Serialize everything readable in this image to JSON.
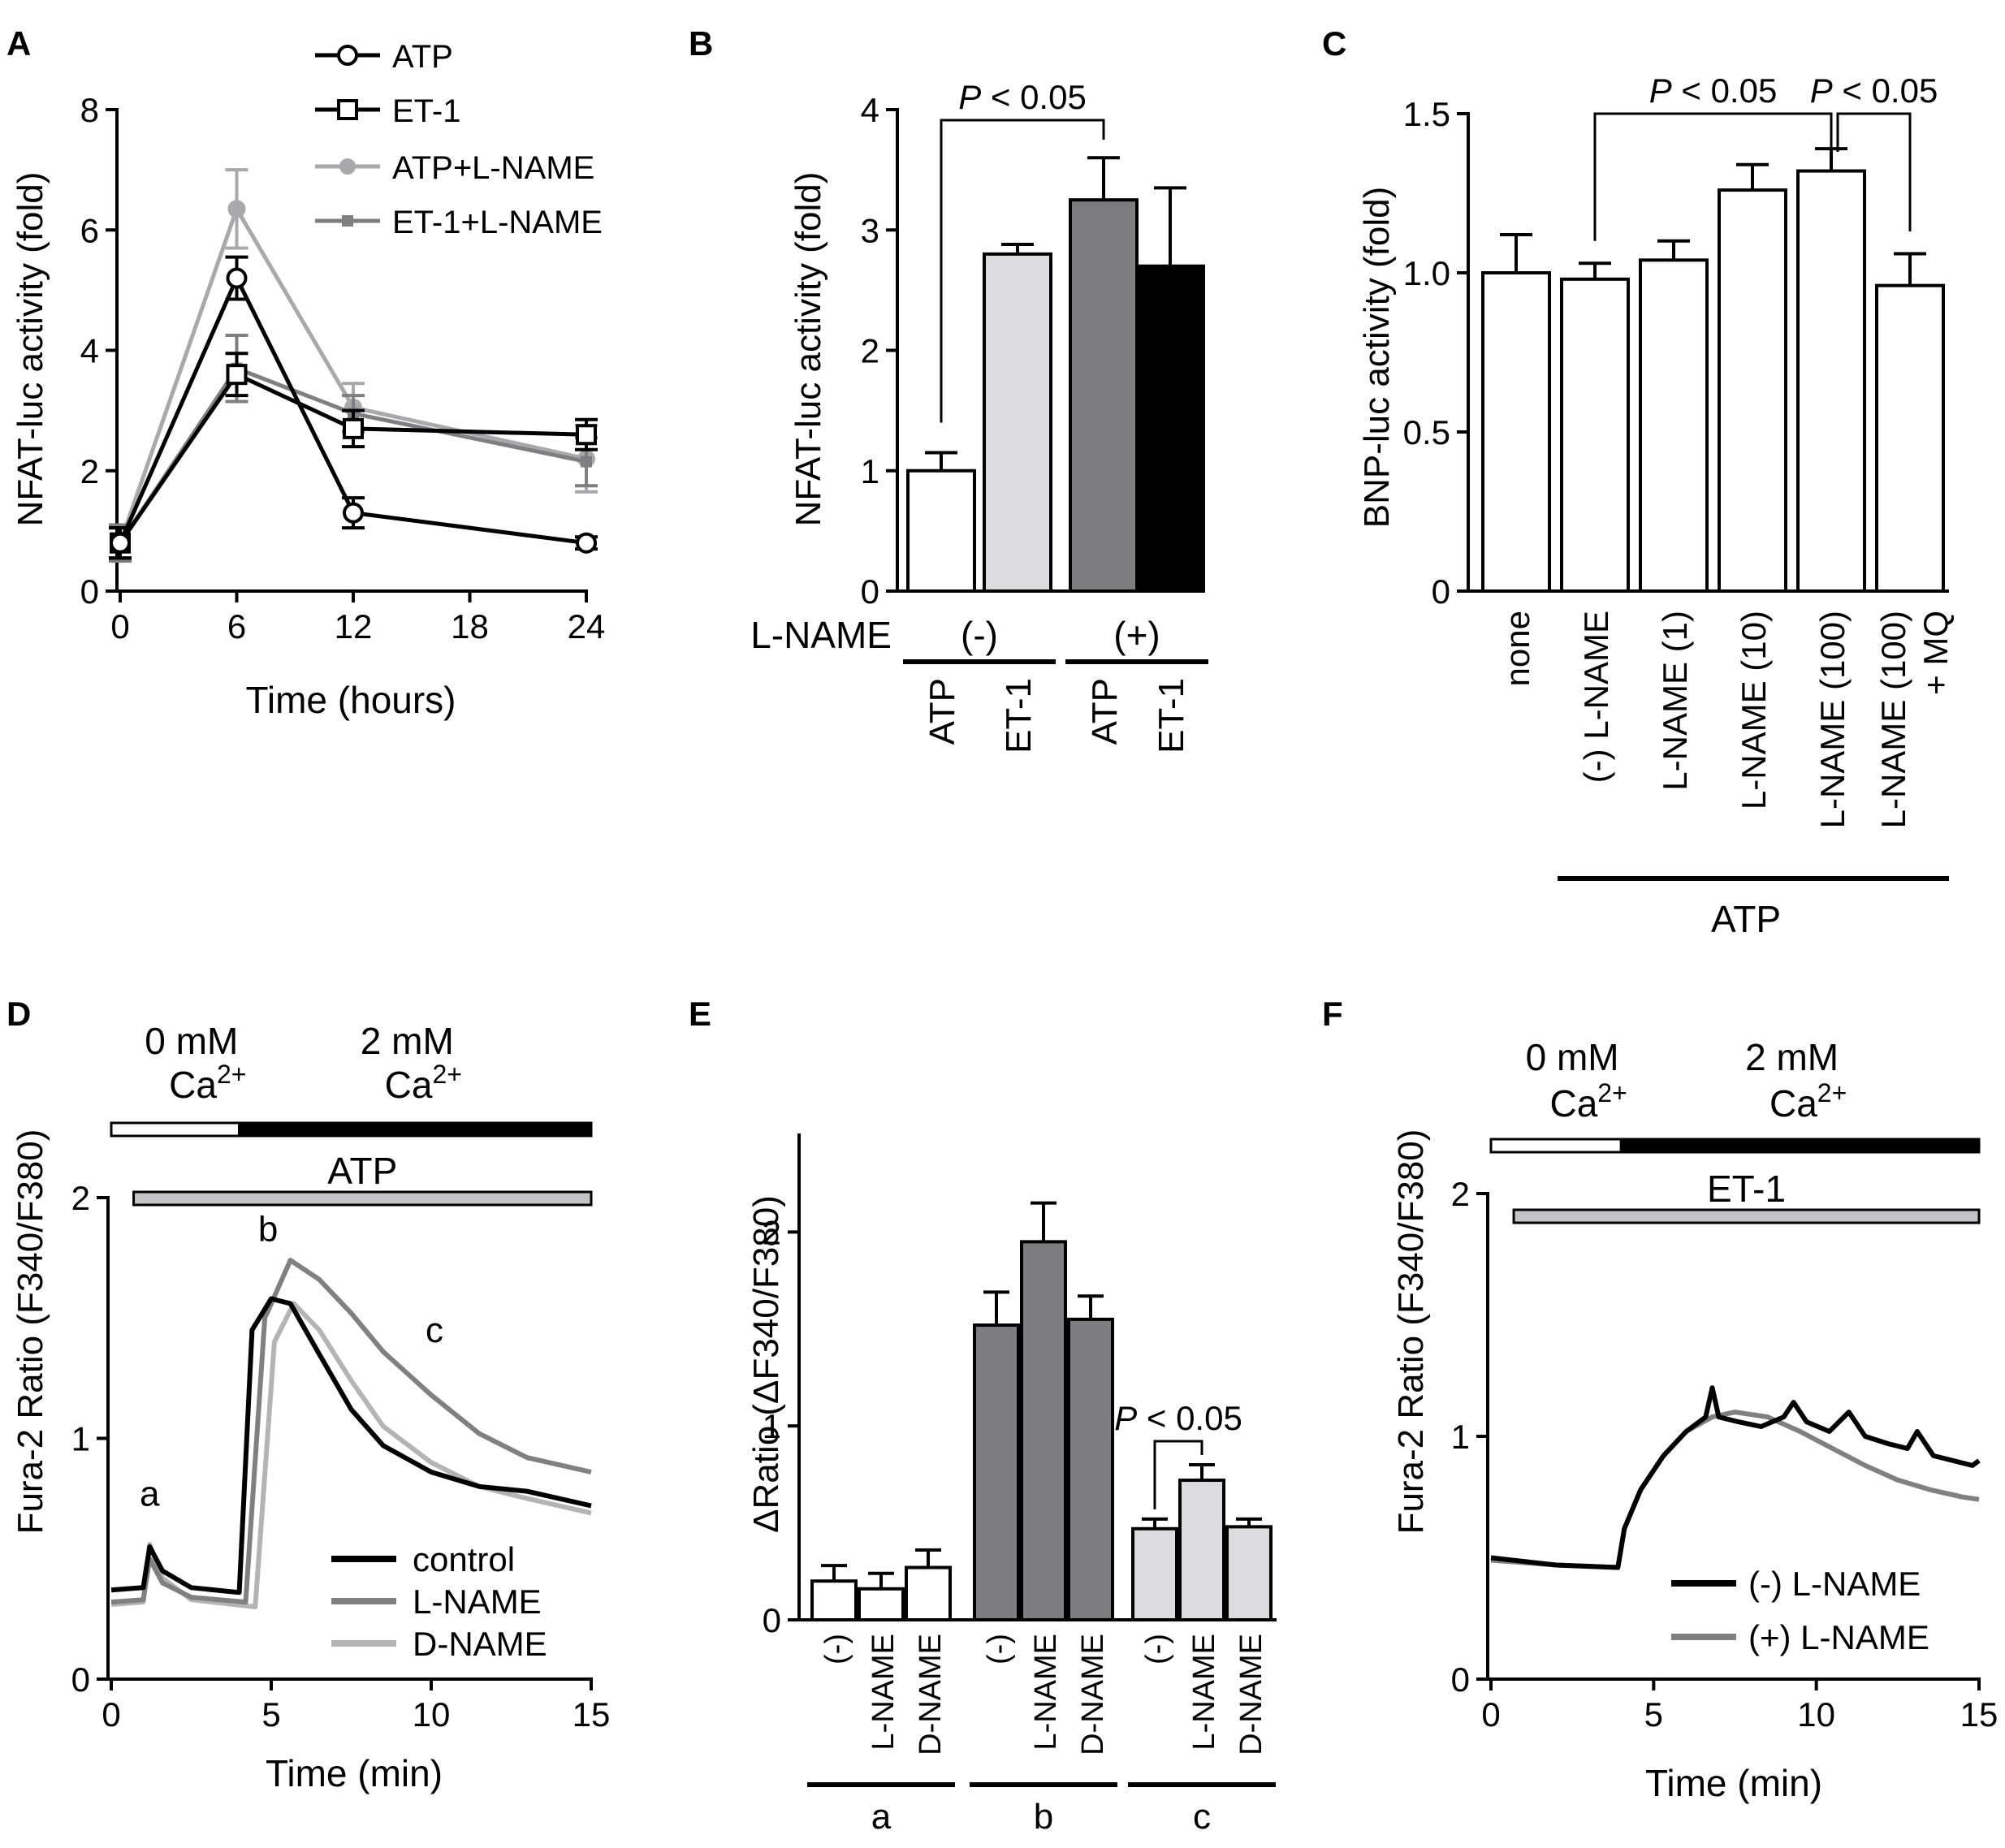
{
  "figure": {
    "colors": {
      "black": "#000000",
      "white": "#ffffff",
      "light_gray": "#c4c4c6",
      "mid_gray": "#8c8c8e",
      "dark_gray": "#6a6a6c",
      "bar_light": "#dcdcde",
      "bar_dark": "#7d7d80",
      "trace_gray": "#808080",
      "trace_light": "#b4b4b6"
    }
  },
  "chart_data": [
    {
      "panel": "A",
      "type": "line",
      "xlabel": "Time (hours)",
      "ylabel": "NFAT-luc activity (fold)",
      "xlim": [
        0,
        24
      ],
      "ylim": [
        0,
        8
      ],
      "xticks": [
        0,
        6,
        12,
        18,
        24
      ],
      "yticks": [
        0,
        2,
        4,
        6,
        8
      ],
      "legend_position": "top-right",
      "series": [
        {
          "name": "ATP",
          "marker": "circle",
          "color": "#000000",
          "x": [
            0,
            6,
            12,
            24
          ],
          "y": [
            0.8,
            5.2,
            1.3,
            0.8
          ],
          "err": [
            0.25,
            0.35,
            0.25,
            0.1
          ]
        },
        {
          "name": "ET-1",
          "marker": "square",
          "color": "#000000",
          "x": [
            0,
            6,
            12,
            24
          ],
          "y": [
            0.8,
            3.6,
            2.7,
            2.6
          ],
          "err": [
            0.25,
            0.35,
            0.3,
            0.25
          ]
        },
        {
          "name": "ATP+L-NAME",
          "marker": "dot",
          "color": "#a9a9ab",
          "x": [
            0,
            6,
            12,
            24
          ],
          "y": [
            0.8,
            6.35,
            3.05,
            2.2
          ],
          "err": [
            0.3,
            0.65,
            0.4,
            0.55
          ]
        },
        {
          "name": "ET-1+L-NAME",
          "marker": "smallsquare",
          "color": "#7f7f82",
          "x": [
            0,
            6,
            12,
            24
          ],
          "y": [
            0.8,
            3.7,
            2.95,
            2.15
          ],
          "err": [
            0.3,
            0.55,
            0.3,
            0.4
          ]
        }
      ]
    },
    {
      "panel": "B",
      "type": "bar",
      "ylabel": "NFAT-luc activity (fold)",
      "ylim": [
        0,
        4
      ],
      "yticks": [
        0,
        1,
        2,
        3,
        4
      ],
      "categories": [
        "ATP",
        "ET-1",
        "ATP",
        "ET-1"
      ],
      "values": [
        1.0,
        2.8,
        3.25,
        2.7
      ],
      "errors": [
        0.15,
        0.08,
        0.35,
        0.65
      ],
      "fills": [
        "#ffffff",
        "#dcdcde",
        "#7d7d80",
        "#000000"
      ],
      "groups": [
        {
          "label": "(-)",
          "bars": [
            0,
            1
          ]
        },
        {
          "label": "(+)",
          "bars": [
            2,
            3
          ]
        }
      ],
      "group_row_label": "L-NAME",
      "significance": [
        {
          "bars": [
            0,
            2
          ],
          "label": "P < 0.05"
        }
      ]
    },
    {
      "panel": "C",
      "type": "bar",
      "ylabel": "BNP-luc activity (fold)",
      "ylim": [
        0,
        1.5
      ],
      "yticks": [
        0,
        0.5,
        1.0,
        1.5
      ],
      "ytick_labels": [
        "0",
        "0.5",
        "1.0",
        "1.5"
      ],
      "categories": [
        "none",
        "(-) L-NAME",
        "L-NAME (1)",
        "L-NAME (10)",
        "L-NAME (100)",
        "L-NAME (100)\n+ MQ"
      ],
      "values": [
        1.0,
        0.98,
        1.04,
        1.26,
        1.32,
        0.96
      ],
      "errors": [
        0.12,
        0.05,
        0.06,
        0.08,
        0.07,
        0.1
      ],
      "group_label": "ATP",
      "significance": [
        {
          "bars": [
            1,
            4
          ],
          "label": "P < 0.05"
        },
        {
          "bars": [
            4,
            5
          ],
          "label": "P < 0.05"
        }
      ]
    },
    {
      "panel": "D",
      "type": "line",
      "xlabel": "Time (min)",
      "ylabel": "Fura-2 Ratio (F340/F380)",
      "xlim": [
        0,
        15
      ],
      "ylim": [
        0,
        2
      ],
      "xticks": [
        0,
        5,
        10,
        15
      ],
      "yticks": [
        0,
        1,
        2
      ],
      "treatment": {
        "zero_ca": "0 mM",
        "two_ca": "2 mM",
        "ca": "Ca",
        "charge": "2+",
        "agent": "ATP",
        "zero_span": [
          0,
          4
        ],
        "two_span": [
          4,
          15
        ],
        "agent_span": [
          0.7,
          15
        ]
      },
      "annotations": [
        {
          "label": "a",
          "x": 1.2,
          "y": 0.72
        },
        {
          "label": "b",
          "x": 4.9,
          "y": 1.82
        },
        {
          "label": "c",
          "x": 10.1,
          "y": 1.4
        }
      ],
      "legend_position": "bottom-right",
      "series": [
        {
          "name": "control",
          "color": "#000000",
          "x": [
            0,
            1.0,
            1.2,
            1.6,
            2.5,
            4.0,
            4.4,
            5.0,
            5.6,
            6.5,
            7.5,
            8.5,
            10,
            11.5,
            13,
            15
          ],
          "y": [
            0.37,
            0.38,
            0.55,
            0.45,
            0.38,
            0.36,
            1.45,
            1.58,
            1.56,
            1.35,
            1.12,
            0.97,
            0.86,
            0.8,
            0.78,
            0.72
          ]
        },
        {
          "name": "L-NAME",
          "color": "#808080",
          "x": [
            0,
            1.0,
            1.2,
            1.6,
            2.5,
            4.2,
            4.8,
            5.6,
            6.5,
            7.5,
            8.5,
            10,
            11.5,
            13,
            15
          ],
          "y": [
            0.32,
            0.33,
            0.5,
            0.4,
            0.34,
            0.32,
            1.5,
            1.74,
            1.66,
            1.52,
            1.36,
            1.18,
            1.02,
            0.92,
            0.86
          ]
        },
        {
          "name": "D-NAME",
          "color": "#b4b4b6",
          "x": [
            0,
            1.0,
            1.2,
            1.6,
            2.5,
            4.5,
            5.1,
            5.7,
            6.5,
            7.5,
            8.5,
            10,
            11.5,
            13,
            15
          ],
          "y": [
            0.31,
            0.32,
            0.56,
            0.42,
            0.33,
            0.3,
            1.4,
            1.56,
            1.45,
            1.24,
            1.05,
            0.9,
            0.8,
            0.75,
            0.69
          ]
        }
      ]
    },
    {
      "panel": "E",
      "type": "bar",
      "ylabel": "ΔRatio (ΔF340/F380)",
      "ylim": [
        0,
        2.5
      ],
      "yticks": [
        0,
        1,
        2
      ],
      "categories": [
        "(-)",
        "L-NAME",
        "D-NAME",
        "(-)",
        "L-NAME",
        "D-NAME",
        "(-)",
        "L-NAME",
        "D-NAME"
      ],
      "values": [
        0.2,
        0.16,
        0.27,
        1.52,
        1.95,
        1.55,
        0.47,
        0.72,
        0.48
      ],
      "errors": [
        0.08,
        0.08,
        0.09,
        0.17,
        0.2,
        0.12,
        0.05,
        0.08,
        0.04
      ],
      "fills": [
        "#ffffff",
        "#ffffff",
        "#ffffff",
        "#7d7d80",
        "#7d7d80",
        "#7d7d80",
        "#dcdcde",
        "#dcdcde",
        "#dcdcde"
      ],
      "groups": [
        {
          "label": "a",
          "bars": [
            0,
            1,
            2
          ]
        },
        {
          "label": "b",
          "bars": [
            3,
            4,
            5
          ]
        },
        {
          "label": "c",
          "bars": [
            6,
            7,
            8
          ]
        }
      ],
      "significance": [
        {
          "bars": [
            6,
            7
          ],
          "label": "P < 0.05"
        }
      ]
    },
    {
      "panel": "F",
      "type": "line",
      "xlabel": "Time (min)",
      "ylabel": "Fura-2 Ratio (F340/F380)",
      "xlim": [
        0,
        15
      ],
      "ylim": [
        0,
        2
      ],
      "xticks": [
        0,
        5,
        10,
        15
      ],
      "yticks": [
        0,
        1,
        2
      ],
      "treatment": {
        "zero_ca": "0 mM",
        "two_ca": "2 mM",
        "ca": "Ca",
        "charge": "2+",
        "agent": "ET-1",
        "zero_span": [
          0,
          4
        ],
        "two_span": [
          4,
          15
        ],
        "agent_span": [
          0.7,
          15
        ]
      },
      "legend_position": "bottom-right",
      "series": [
        {
          "name": "(-) L-NAME",
          "color": "#000000",
          "x": [
            0,
            2,
            3.9,
            4.1,
            4.6,
            5.3,
            6.0,
            6.6,
            6.8,
            7.0,
            7.6,
            8.3,
            9.0,
            9.3,
            9.7,
            10.4,
            11.0,
            11.5,
            12.2,
            12.8,
            13.1,
            13.6,
            14.2,
            14.8,
            15
          ],
          "y": [
            0.5,
            0.47,
            0.46,
            0.62,
            0.78,
            0.92,
            1.02,
            1.08,
            1.2,
            1.08,
            1.06,
            1.04,
            1.08,
            1.14,
            1.06,
            1.02,
            1.1,
            1.0,
            0.97,
            0.95,
            1.02,
            0.92,
            0.9,
            0.88,
            0.9
          ]
        },
        {
          "name": "(+) L-NAME",
          "color": "#808080",
          "x": [
            0,
            2,
            3.9,
            4.1,
            4.6,
            5.3,
            6.0,
            6.8,
            7.5,
            8.5,
            9.5,
            10.5,
            11.5,
            12.5,
            13.5,
            14.5,
            15
          ],
          "y": [
            0.49,
            0.47,
            0.46,
            0.62,
            0.78,
            0.92,
            1.02,
            1.08,
            1.1,
            1.08,
            1.02,
            0.95,
            0.88,
            0.82,
            0.78,
            0.75,
            0.74
          ]
        }
      ]
    }
  ]
}
